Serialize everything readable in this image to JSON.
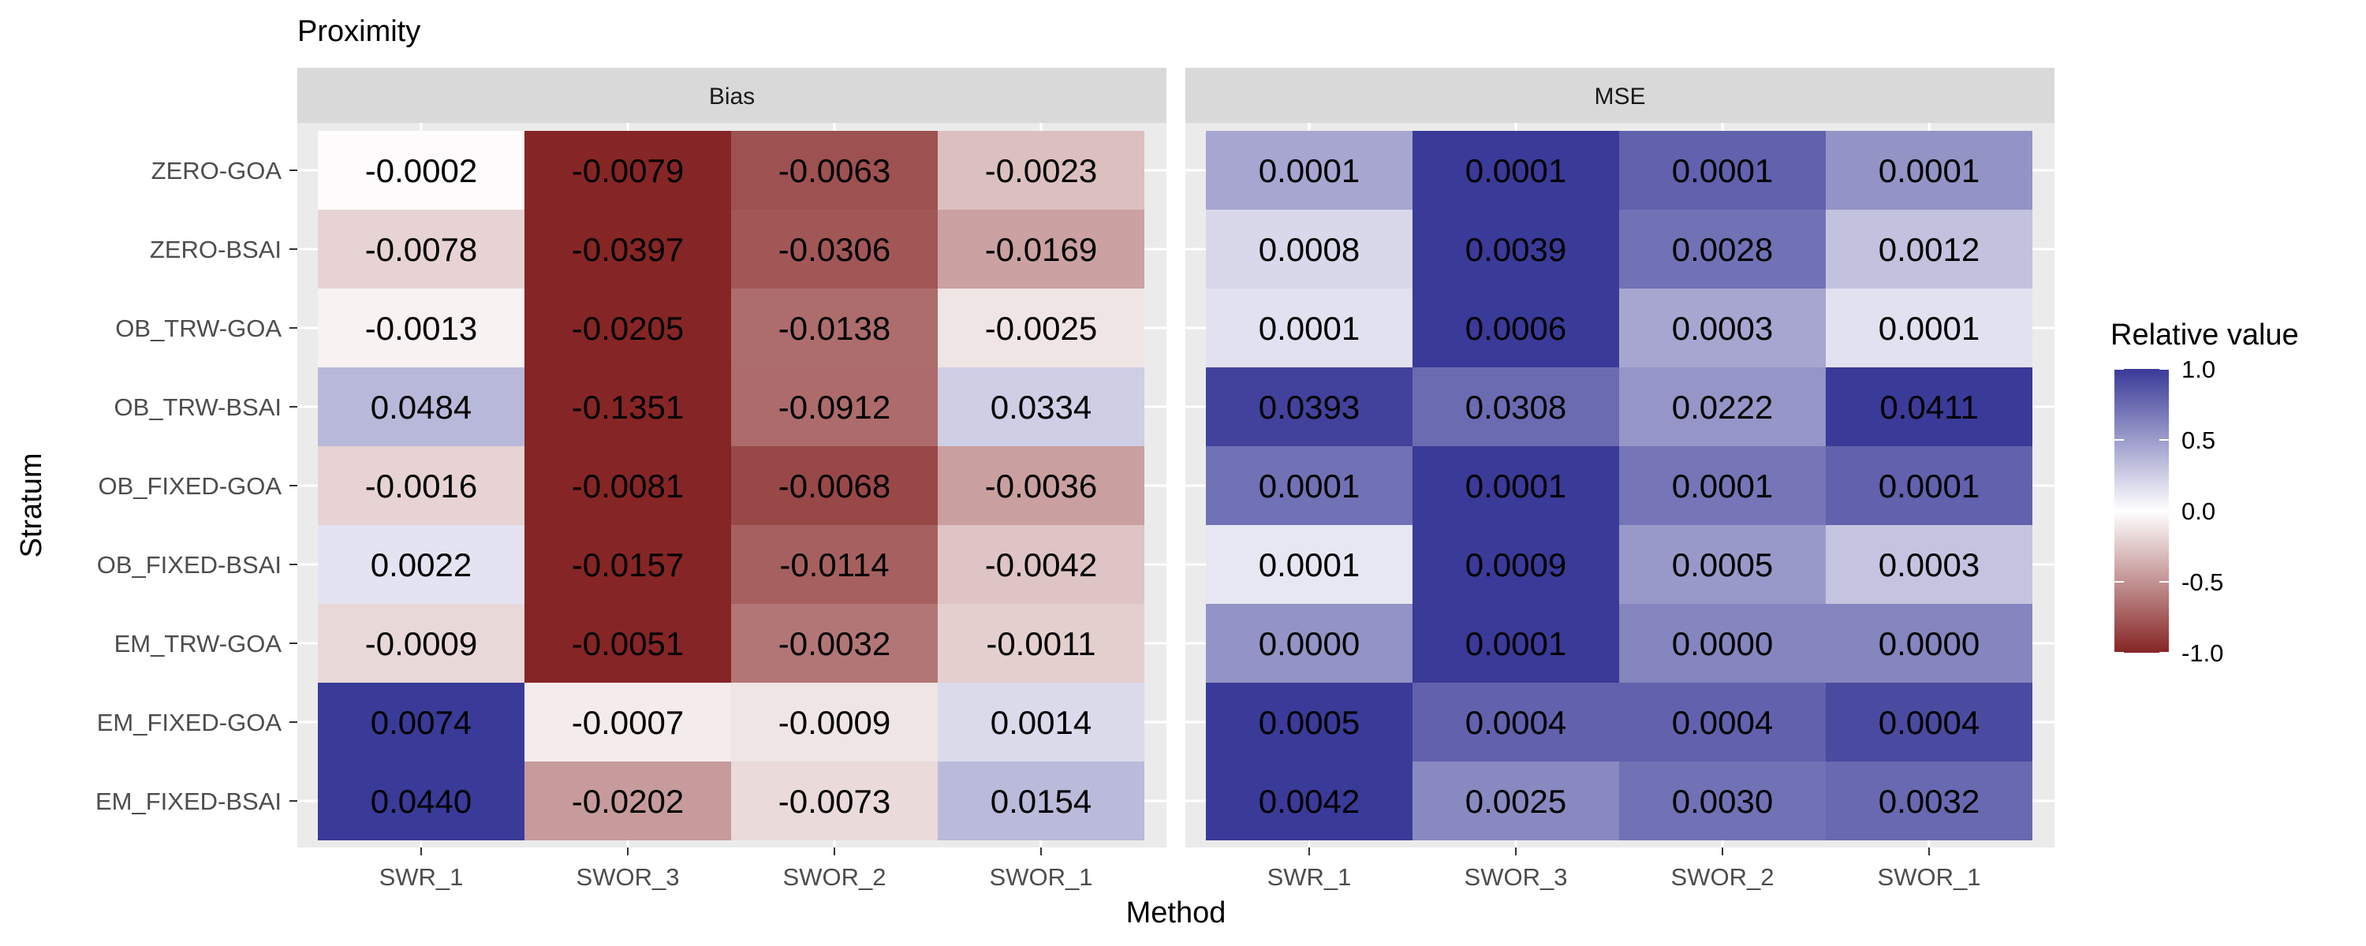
{
  "chart_data": {
    "type": "heatmap",
    "title": "Proximity",
    "xlabel": "Method",
    "ylabel": "Stratum",
    "methods": [
      "SWR_1",
      "SWOR_3",
      "SWOR_2",
      "SWOR_1"
    ],
    "strata": [
      "ZERO-GOA",
      "ZERO-BSAI",
      "OB_TRW-GOA",
      "OB_TRW-BSAI",
      "OB_FIXED-GOA",
      "OB_FIXED-BSAI",
      "EM_TRW-GOA",
      "EM_FIXED-GOA",
      "EM_FIXED-BSAI"
    ],
    "legend": {
      "title": "Relative value",
      "placement": "right",
      "ticks": [
        "1.0",
        "0.5",
        "0.0",
        "-0.5",
        "-1.0"
      ],
      "range": [
        -1,
        1
      ],
      "low_color": "#862525",
      "mid_color": "#ffffff",
      "high_color": "#3a3a98"
    },
    "panels": [
      {
        "name": "Bias",
        "labels": [
          [
            "-0.0002",
            "-0.0079",
            "-0.0063",
            "-0.0023"
          ],
          [
            "-0.0078",
            "-0.0397",
            "-0.0306",
            "-0.0169"
          ],
          [
            "-0.0013",
            "-0.0205",
            "-0.0138",
            "-0.0025"
          ],
          [
            "0.0484",
            "-0.1351",
            "-0.0912",
            "0.0334"
          ],
          [
            "-0.0016",
            "-0.0081",
            "-0.0068",
            "-0.0036"
          ],
          [
            "0.0022",
            "-0.0157",
            "-0.0114",
            "-0.0042"
          ],
          [
            "-0.0009",
            "-0.0051",
            "-0.0032",
            "-0.0011"
          ],
          [
            "0.0074",
            "-0.0007",
            "-0.0009",
            "0.0014"
          ],
          [
            "0.0440",
            "-0.0202",
            "-0.0073",
            "0.0154"
          ]
        ],
        "relative": [
          [
            -0.02,
            -1.0,
            -0.8,
            -0.29
          ],
          [
            -0.2,
            -1.0,
            -0.77,
            -0.43
          ],
          [
            -0.06,
            -1.0,
            -0.67,
            -0.12
          ],
          [
            0.36,
            -1.0,
            -0.68,
            0.25
          ],
          [
            -0.2,
            -1.0,
            -0.84,
            -0.44
          ],
          [
            0.14,
            -1.0,
            -0.73,
            -0.27
          ],
          [
            -0.18,
            -1.0,
            -0.63,
            -0.22
          ],
          [
            1.0,
            -0.09,
            -0.12,
            0.19
          ],
          [
            1.0,
            -0.46,
            -0.17,
            0.35
          ]
        ]
      },
      {
        "name": "MSE",
        "labels": [
          [
            "0.0001",
            "0.0001",
            "0.0001",
            "0.0001"
          ],
          [
            "0.0008",
            "0.0039",
            "0.0028",
            "0.0012"
          ],
          [
            "0.0001",
            "0.0006",
            "0.0003",
            "0.0001"
          ],
          [
            "0.0393",
            "0.0308",
            "0.0222",
            "0.0411"
          ],
          [
            "0.0001",
            "0.0001",
            "0.0001",
            "0.0001"
          ],
          [
            "0.0001",
            "0.0009",
            "0.0005",
            "0.0003"
          ],
          [
            "0.0000",
            "0.0001",
            "0.0000",
            "0.0000"
          ],
          [
            "0.0005",
            "0.0004",
            "0.0004",
            "0.0004"
          ],
          [
            "0.0042",
            "0.0025",
            "0.0030",
            "0.0032"
          ]
        ],
        "relative": [
          [
            0.45,
            1.0,
            0.8,
            0.55
          ],
          [
            0.2,
            1.0,
            0.72,
            0.31
          ],
          [
            0.15,
            1.0,
            0.45,
            0.15
          ],
          [
            0.96,
            0.75,
            0.54,
            1.0
          ],
          [
            0.72,
            1.0,
            0.7,
            0.8
          ],
          [
            0.12,
            1.0,
            0.52,
            0.3
          ],
          [
            0.55,
            1.0,
            0.62,
            0.62
          ],
          [
            1.0,
            0.8,
            0.8,
            0.92
          ],
          [
            1.0,
            0.6,
            0.72,
            0.76
          ]
        ]
      }
    ]
  }
}
